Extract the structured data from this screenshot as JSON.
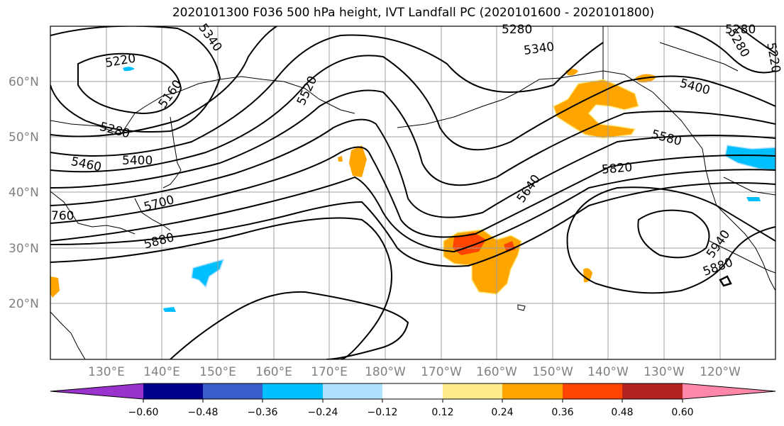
{
  "title": "2020101300 F036 500 hPa height, IVT Landfall PC (2020101600 - 2020101800)",
  "lat_labels": [
    "60°N",
    "50°N",
    "40°N",
    "30°N",
    "20°N"
  ],
  "lon_labels": [
    "130°E",
    "140°E",
    "150°E",
    "160°E",
    "170°E",
    "180°W",
    "170°W",
    "160°W",
    "150°W",
    "140°W",
    "130°W",
    "120°W"
  ],
  "contour_labels": [
    "5220",
    "5340",
    "5160",
    "5280",
    "5400",
    "5460",
    "5700",
    "760",
    "5880",
    "5520",
    "5280",
    "5340",
    "5280",
    "5400",
    "5580",
    "5820",
    "5640",
    "5940",
    "5880",
    "5280",
    "5220"
  ],
  "colorbar": {
    "ticks": [
      "−0.60",
      "−0.48",
      "−0.36",
      "−0.24",
      "−0.12",
      "0.12",
      "0.24",
      "0.36",
      "0.48",
      "0.60"
    ],
    "colors": [
      "#9933cc",
      "#00008b",
      "#3a5fcd",
      "#00bfff",
      "#b0e2ff",
      "#ffffff",
      "#ffec8b",
      "#ffa500",
      "#ff4500",
      "#b22222",
      "#ff88aa"
    ]
  }
}
